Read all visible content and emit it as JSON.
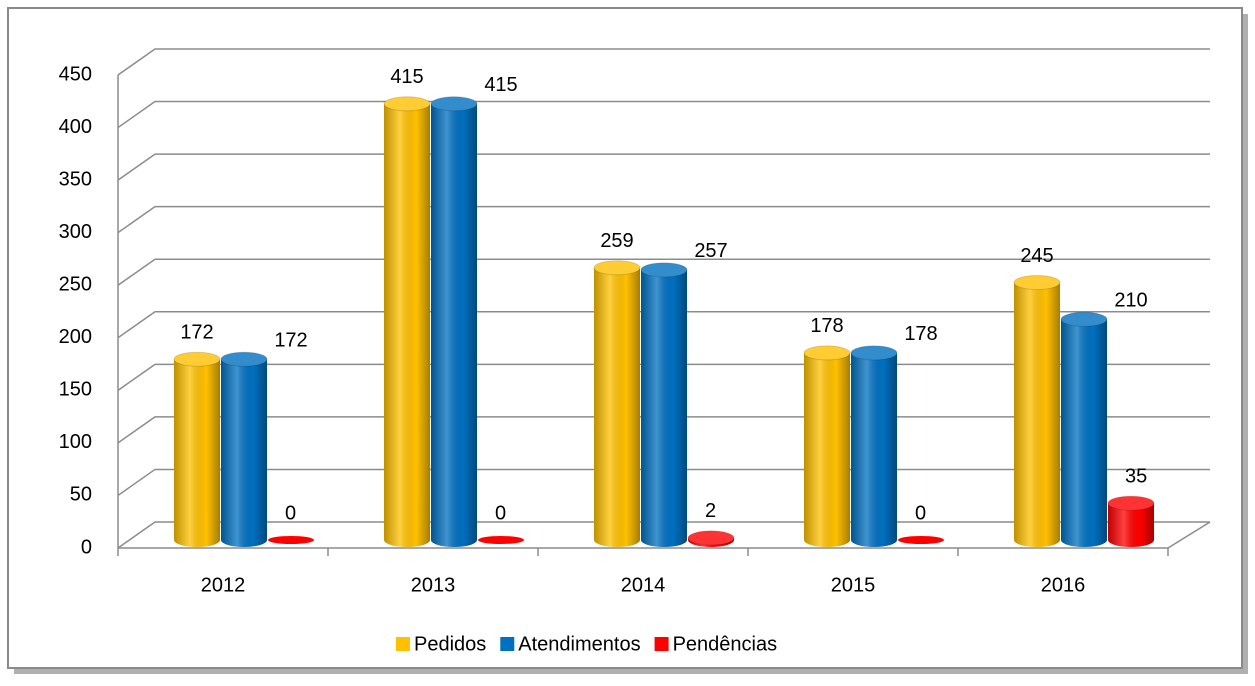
{
  "chart_data": {
    "type": "bar",
    "categories": [
      "2012",
      "2013",
      "2014",
      "2015",
      "2016"
    ],
    "series": [
      {
        "name": "Pedidos",
        "color": "#ffc000",
        "values": [
          172,
          415,
          259,
          178,
          245
        ]
      },
      {
        "name": "Atendimentos",
        "color": "#0070c0",
        "values": [
          172,
          415,
          257,
          178,
          210
        ]
      },
      {
        "name": "Pendências",
        "color": "#ff0000",
        "values": [
          0,
          0,
          2,
          0,
          35
        ]
      }
    ],
    "ylim": [
      0,
      450
    ],
    "yticks": [
      0,
      50,
      100,
      150,
      200,
      250,
      300,
      350,
      400,
      450
    ],
    "grid": true,
    "legend": "bottom"
  }
}
